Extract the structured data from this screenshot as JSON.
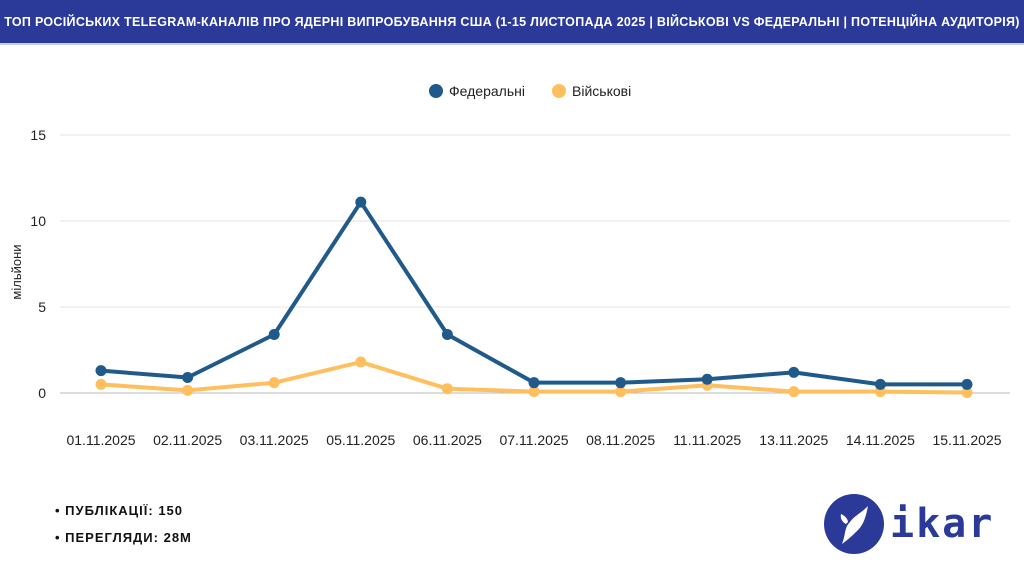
{
  "header": {
    "title": "ТОП РОСІЙСЬКИХ TELEGRAM-КАНАЛІВ ПРО ЯДЕРНІ ВИПРОБУВАННЯ США (1-15 ЛИСТОПАДА 2025 | ВІЙСЬКОВІ VS ФЕДЕРАЛЬНІ | ПОТЕНЦІЙНА АУДИТОРІЯ)"
  },
  "chart_data": {
    "type": "line",
    "title": "",
    "xlabel": "",
    "ylabel": "мільйони",
    "ylim": [
      0,
      15
    ],
    "yticks": [
      "0",
      "5",
      "10",
      "15"
    ],
    "grid": true,
    "legend_placement": "top-center",
    "categories": [
      "01.11.2025",
      "02.11.2025",
      "03.11.2025",
      "05.11.2025",
      "06.11.2025",
      "07.11.2025",
      "08.11.2025",
      "11.11.2025",
      "13.11.2025",
      "14.11.2025",
      "15.11.2025"
    ],
    "series": [
      {
        "name": "Федеральні",
        "color": "#1f5a8a",
        "values": [
          1.3,
          0.9,
          3.4,
          11.1,
          3.4,
          0.6,
          0.6,
          0.8,
          1.2,
          0.5,
          0.5
        ]
      },
      {
        "name": "Військові",
        "color": "#ffbf5e",
        "values": [
          0.5,
          0.15,
          0.6,
          1.8,
          0.25,
          0.08,
          0.08,
          0.45,
          0.08,
          0.08,
          0.03
        ]
      }
    ]
  },
  "stats": {
    "publications": "ПУБЛІКАЦІЇ:  150",
    "views": "ПЕРЕГЛЯДИ: 28M"
  },
  "logo": {
    "text": "ikar"
  }
}
